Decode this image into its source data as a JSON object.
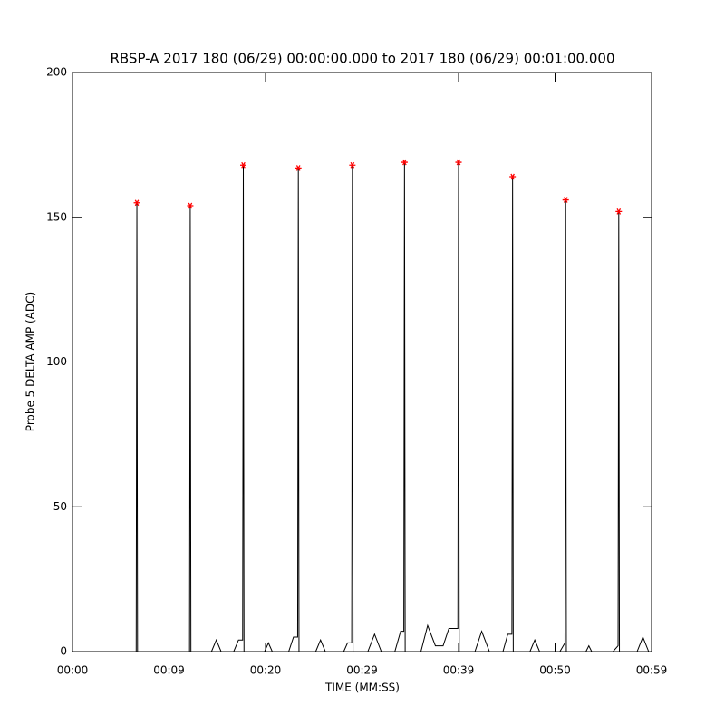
{
  "chart_data": {
    "type": "line",
    "title": "RBSP-A 2017 180 (06/29) 00:00:00.000 to 2017 180 (06/29) 00:01:00.000",
    "x_label": "TIME (MM:SS)",
    "y_label": "Probe 5 DELTA AMP (ADC)",
    "xlim": [
      0,
      60
    ],
    "ylim": [
      0,
      200
    ],
    "xticks": [
      {
        "value": 0,
        "label": "00:00"
      },
      {
        "value": 10,
        "label": "00:09"
      },
      {
        "value": 20,
        "label": "00:20"
      },
      {
        "value": 30,
        "label": "00:29"
      },
      {
        "value": 40,
        "label": "00:39"
      },
      {
        "value": 50,
        "label": "00:50"
      },
      {
        "value": 60,
        "label": "00:59"
      }
    ],
    "yticks": [
      0,
      50,
      100,
      150,
      200
    ],
    "grid": false,
    "series": [
      {
        "type": "line",
        "color": "#000000",
        "x": [
          0,
          6.6,
          6.67,
          6.74,
          12.13,
          12.2,
          12.27,
          14.4,
          14.9,
          15.4,
          16.7,
          17.2,
          17.63,
          17.7,
          17.77,
          19.9,
          20.3,
          20.7,
          22.4,
          22.9,
          23.33,
          23.4,
          23.47,
          25.2,
          25.7,
          26.2,
          28.1,
          28.5,
          28.93,
          29.0,
          29.07,
          30.6,
          31.3,
          32.0,
          33.4,
          34.0,
          34.33,
          34.4,
          34.47,
          36.1,
          36.8,
          37.6,
          38.4,
          39.0,
          39.93,
          40.0,
          40.07,
          41.7,
          42.4,
          43.2,
          44.6,
          45.1,
          45.53,
          45.6,
          45.67,
          47.4,
          47.9,
          48.4,
          50.5,
          51.03,
          51.1,
          51.17,
          53.2,
          53.5,
          53.8,
          56.0,
          56.53,
          56.6,
          56.67,
          58.5,
          59.1,
          59.7
        ],
        "values": [
          0,
          0,
          155,
          0,
          0,
          154,
          0,
          0,
          4,
          0,
          0,
          4,
          4,
          168,
          0,
          0,
          3,
          0,
          0,
          5,
          5,
          167,
          0,
          0,
          4,
          0,
          0,
          3,
          3,
          168,
          0,
          0,
          6,
          0,
          0,
          7,
          7,
          169,
          0,
          0,
          9,
          2,
          2,
          8,
          8,
          169,
          0,
          0,
          7,
          0,
          0,
          6,
          6,
          164,
          0,
          0,
          4,
          0,
          0,
          3,
          156,
          0,
          0,
          2,
          0,
          0,
          2,
          152,
          0,
          0,
          5,
          0
        ]
      },
      {
        "type": "scatter",
        "marker": "star",
        "color": "#ff0000",
        "x": [
          6.67,
          12.2,
          17.7,
          23.4,
          29.0,
          34.4,
          40.0,
          45.6,
          51.1,
          56.6
        ],
        "values": [
          155,
          154,
          168,
          167,
          168,
          169,
          169,
          164,
          156,
          152
        ]
      }
    ]
  }
}
